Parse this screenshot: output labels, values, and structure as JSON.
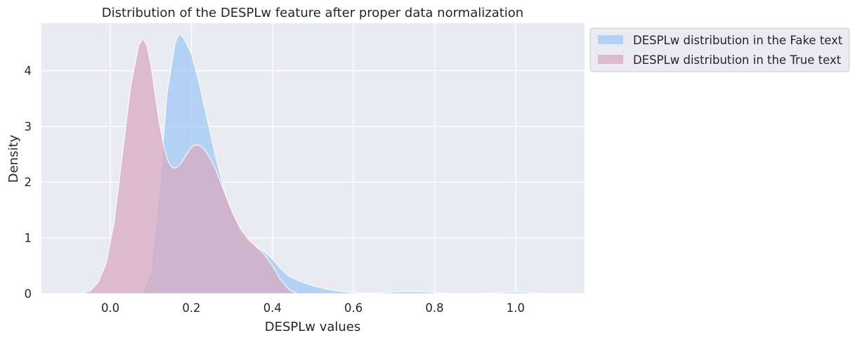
{
  "chart_data": {
    "type": "area",
    "title": "Distribution of the DESPLw feature after proper data normalization",
    "xlabel": "DESPLw values",
    "ylabel": "Density",
    "xlim": [
      -0.17,
      1.17
    ],
    "ylim": [
      0,
      4.85
    ],
    "x_ticks": [
      "0.0",
      "0.2",
      "0.4",
      "0.6",
      "0.8",
      "1.0"
    ],
    "x_tick_values": [
      0.0,
      0.2,
      0.4,
      0.6,
      0.8,
      1.0
    ],
    "y_ticks": [
      "0",
      "1",
      "2",
      "3",
      "4"
    ],
    "y_tick_values": [
      0,
      1,
      2,
      3,
      4
    ],
    "grid": true,
    "legend_position": "outside-top-right",
    "background": "#eaeaf2",
    "series": [
      {
        "name": "DESPLw distribution in the Fake text",
        "color": "#a1c9f4",
        "x": [
          0.05,
          0.08,
          0.1,
          0.12,
          0.14,
          0.16,
          0.17,
          0.18,
          0.2,
          0.22,
          0.24,
          0.26,
          0.28,
          0.3,
          0.32,
          0.34,
          0.36,
          0.38,
          0.4,
          0.42,
          0.44,
          0.46,
          0.5,
          0.54,
          0.58,
          0.62,
          0.66,
          0.7,
          0.74,
          0.78,
          0.82,
          0.86,
          0.9,
          0.94,
          0.97,
          1.0,
          1.03,
          1.07
        ],
        "values": [
          0.0,
          0.02,
          0.4,
          1.8,
          3.6,
          4.5,
          4.66,
          4.6,
          4.3,
          3.75,
          3.1,
          2.45,
          1.88,
          1.45,
          1.12,
          0.95,
          0.85,
          0.75,
          0.62,
          0.45,
          0.32,
          0.24,
          0.14,
          0.07,
          0.03,
          0.01,
          0.01,
          0.03,
          0.04,
          0.03,
          0.01,
          0.0,
          0.0,
          0.01,
          0.02,
          0.03,
          0.02,
          0.0
        ]
      },
      {
        "name": "DESPLw distribution in the True text",
        "color": "#d8a9c2",
        "x": [
          -0.07,
          -0.05,
          -0.03,
          -0.01,
          0.01,
          0.03,
          0.05,
          0.07,
          0.08,
          0.09,
          0.1,
          0.11,
          0.12,
          0.13,
          0.14,
          0.15,
          0.16,
          0.17,
          0.18,
          0.19,
          0.2,
          0.21,
          0.22,
          0.23,
          0.24,
          0.25,
          0.26,
          0.28,
          0.3,
          0.32,
          0.34,
          0.36,
          0.38,
          0.4,
          0.42,
          0.44,
          0.46
        ],
        "values": [
          0.0,
          0.05,
          0.2,
          0.55,
          1.3,
          2.5,
          3.7,
          4.45,
          4.58,
          4.45,
          4.1,
          3.6,
          3.1,
          2.7,
          2.42,
          2.28,
          2.25,
          2.3,
          2.4,
          2.52,
          2.62,
          2.67,
          2.66,
          2.6,
          2.5,
          2.38,
          2.22,
          1.85,
          1.48,
          1.18,
          0.98,
          0.84,
          0.7,
          0.5,
          0.25,
          0.08,
          0.0
        ]
      }
    ]
  }
}
